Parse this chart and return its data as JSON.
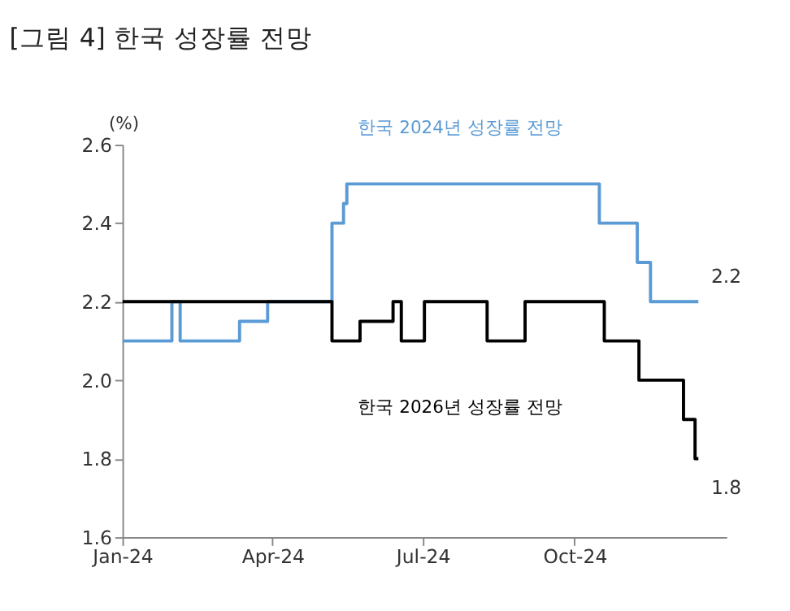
{
  "chart_data": {
    "type": "step",
    "title": "[그림 4] 한국 성장률 전망",
    "ylabel": "(%)",
    "xlim": [
      "2024-01-01",
      "2025-01-01"
    ],
    "xticks": [
      {
        "value": "2024-01-01",
        "label": "Jan-24"
      },
      {
        "value": "2024-04-01",
        "label": "Apr-24"
      },
      {
        "value": "2024-07-01",
        "label": "Jul-24"
      },
      {
        "value": "2024-10-01",
        "label": "Oct-24"
      }
    ],
    "ylim": [
      1.6,
      2.6
    ],
    "yticks": [
      1.6,
      1.8,
      {
        "value": 2.0,
        "label": "2.0"
      },
      2.2,
      2.4,
      2.6
    ],
    "grid": false,
    "marker": "none",
    "line_style": "solid",
    "series": [
      {
        "name": "한국 2024년 성장률 전망",
        "color": "#5b9bd5",
        "x": [
          "2024-01-01",
          "2024-01-31",
          "2024-02-05",
          "2024-03-12",
          "2024-03-29",
          "2024-05-07",
          "2024-05-14",
          "2024-05-16",
          "2024-10-16",
          "2024-11-08",
          "2024-11-16",
          "2024-12-15"
        ],
        "values": [
          2.1,
          2.2,
          2.1,
          2.15,
          2.2,
          2.4,
          2.45,
          2.5,
          2.4,
          2.3,
          2.2,
          2.2
        ]
      },
      {
        "name": "한국 2026년 성장률 전망",
        "color": "#000000",
        "x": [
          "2024-01-01",
          "2024-05-07",
          "2024-05-24",
          "2024-06-13",
          "2024-06-18",
          "2024-07-02",
          "2024-08-09",
          "2024-09-01",
          "2024-10-19",
          "2024-11-09",
          "2024-12-06",
          "2024-12-13",
          "2024-12-15"
        ],
        "values": [
          2.2,
          2.1,
          2.15,
          2.2,
          2.1,
          2.2,
          2.1,
          2.2,
          2.1,
          2.0,
          1.9,
          1.8,
          1.8
        ]
      }
    ],
    "annotations": [
      {
        "text": "2.2",
        "x": "2024-12-15",
        "y": 2.2
      },
      {
        "text": "1.8",
        "x": "2024-12-15",
        "y": 1.8
      }
    ]
  }
}
